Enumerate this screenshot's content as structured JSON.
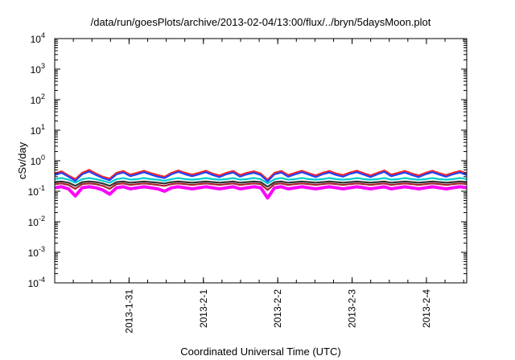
{
  "chart_data": {
    "type": "line",
    "title": "/data/run/goesPlots/archive/2013-02-04/13:00/flux/../bryn/5daysMoon.plot",
    "xlabel": "Coordinated Universal Time (UTC)",
    "ylabel": "cSv/day",
    "y_scale": "log",
    "ylim": [
      0.0001,
      10000
    ],
    "y_ticks": [
      {
        "base": "10",
        "exp": "-4",
        "value": 0.0001
      },
      {
        "base": "10",
        "exp": "-3",
        "value": 0.001
      },
      {
        "base": "10",
        "exp": "-2",
        "value": 0.01
      },
      {
        "base": "10",
        "exp": "-1",
        "value": 0.1
      },
      {
        "base": "10",
        "exp": "0",
        "value": 1
      },
      {
        "base": "10",
        "exp": "1",
        "value": 10
      },
      {
        "base": "10",
        "exp": "2",
        "value": 100
      },
      {
        "base": "10",
        "exp": "3",
        "value": 1000
      },
      {
        "base": "10",
        "exp": "4",
        "value": 10000
      }
    ],
    "xlim": [
      "2013-01-30 00:00",
      "2013-02-04 13:00"
    ],
    "x_ticks": [
      "2013-1-31",
      "2013-2-1",
      "2013-2-2",
      "2013-2-3",
      "2013-2-4"
    ],
    "grid": false,
    "legend": "none",
    "series": [
      {
        "color": "#ff00ff",
        "fill": true,
        "values": [
          0.13,
          0.14,
          0.12,
          0.07,
          0.13,
          0.14,
          0.13,
          0.11,
          0.08,
          0.13,
          0.14,
          0.12,
          0.13,
          0.14,
          0.13,
          0.12,
          0.1,
          0.13,
          0.14,
          0.13,
          0.12,
          0.13,
          0.14,
          0.13,
          0.12,
          0.13,
          0.14,
          0.12,
          0.13,
          0.14,
          0.13,
          0.06,
          0.13,
          0.14,
          0.12,
          0.13,
          0.14,
          0.13,
          0.12,
          0.13,
          0.14,
          0.13,
          0.12,
          0.13,
          0.14,
          0.13,
          0.12,
          0.13,
          0.14,
          0.12,
          0.13,
          0.14,
          0.13,
          0.12,
          0.13,
          0.14,
          0.13,
          0.12,
          0.13,
          0.14,
          0.13
        ]
      },
      {
        "color": "#aa2233",
        "values": [
          0.17,
          0.18,
          0.16,
          0.12,
          0.17,
          0.18,
          0.17,
          0.15,
          0.12,
          0.17,
          0.18,
          0.16,
          0.17,
          0.18,
          0.17,
          0.16,
          0.15,
          0.17,
          0.18,
          0.17,
          0.16,
          0.17,
          0.18,
          0.17,
          0.16,
          0.17,
          0.18,
          0.16,
          0.17,
          0.18,
          0.17,
          0.11,
          0.17,
          0.18,
          0.16,
          0.17,
          0.18,
          0.17,
          0.16,
          0.17,
          0.18,
          0.17,
          0.16,
          0.17,
          0.18,
          0.17,
          0.16,
          0.17,
          0.18,
          0.16,
          0.17,
          0.18,
          0.17,
          0.16,
          0.17,
          0.18,
          0.17,
          0.16,
          0.17,
          0.18,
          0.17
        ]
      },
      {
        "color": "#333333",
        "values": [
          0.2,
          0.21,
          0.19,
          0.15,
          0.2,
          0.21,
          0.2,
          0.18,
          0.15,
          0.2,
          0.21,
          0.19,
          0.2,
          0.21,
          0.2,
          0.19,
          0.18,
          0.2,
          0.21,
          0.2,
          0.19,
          0.2,
          0.21,
          0.2,
          0.19,
          0.2,
          0.21,
          0.19,
          0.2,
          0.21,
          0.2,
          0.14,
          0.2,
          0.21,
          0.19,
          0.2,
          0.21,
          0.2,
          0.19,
          0.2,
          0.21,
          0.2,
          0.19,
          0.2,
          0.21,
          0.2,
          0.19,
          0.2,
          0.21,
          0.19,
          0.2,
          0.21,
          0.2,
          0.19,
          0.2,
          0.21,
          0.2,
          0.19,
          0.2,
          0.21,
          0.2
        ]
      },
      {
        "color": "#00cccc",
        "values": [
          0.25,
          0.27,
          0.24,
          0.19,
          0.25,
          0.27,
          0.25,
          0.22,
          0.19,
          0.25,
          0.27,
          0.24,
          0.25,
          0.27,
          0.25,
          0.24,
          0.22,
          0.25,
          0.27,
          0.25,
          0.24,
          0.25,
          0.27,
          0.25,
          0.24,
          0.25,
          0.27,
          0.24,
          0.25,
          0.27,
          0.25,
          0.18,
          0.25,
          0.27,
          0.24,
          0.25,
          0.27,
          0.25,
          0.24,
          0.25,
          0.27,
          0.25,
          0.24,
          0.25,
          0.27,
          0.25,
          0.24,
          0.25,
          0.27,
          0.24,
          0.25,
          0.27,
          0.25,
          0.24,
          0.25,
          0.27,
          0.25,
          0.24,
          0.25,
          0.27,
          0.25
        ]
      },
      {
        "color": "#ff2222",
        "values": [
          0.38,
          0.45,
          0.33,
          0.25,
          0.4,
          0.5,
          0.38,
          0.3,
          0.26,
          0.4,
          0.46,
          0.35,
          0.4,
          0.47,
          0.39,
          0.34,
          0.3,
          0.4,
          0.48,
          0.4,
          0.35,
          0.4,
          0.47,
          0.38,
          0.33,
          0.4,
          0.46,
          0.34,
          0.4,
          0.45,
          0.38,
          0.24,
          0.4,
          0.46,
          0.34,
          0.4,
          0.47,
          0.39,
          0.33,
          0.4,
          0.46,
          0.38,
          0.34,
          0.41,
          0.47,
          0.39,
          0.33,
          0.4,
          0.48,
          0.35,
          0.4,
          0.46,
          0.38,
          0.33,
          0.4,
          0.47,
          0.39,
          0.34,
          0.4,
          0.46,
          0.38
        ]
      },
      {
        "color": "#2244ff",
        "values": [
          0.34,
          0.4,
          0.3,
          0.22,
          0.36,
          0.44,
          0.34,
          0.27,
          0.23,
          0.36,
          0.41,
          0.31,
          0.36,
          0.42,
          0.35,
          0.3,
          0.27,
          0.36,
          0.43,
          0.36,
          0.31,
          0.36,
          0.42,
          0.34,
          0.29,
          0.36,
          0.41,
          0.3,
          0.36,
          0.4,
          0.34,
          0.21,
          0.36,
          0.41,
          0.3,
          0.36,
          0.42,
          0.35,
          0.29,
          0.36,
          0.41,
          0.34,
          0.3,
          0.37,
          0.42,
          0.35,
          0.29,
          0.36,
          0.43,
          0.31,
          0.36,
          0.41,
          0.34,
          0.29,
          0.36,
          0.42,
          0.35,
          0.3,
          0.36,
          0.41,
          0.34
        ]
      }
    ]
  }
}
